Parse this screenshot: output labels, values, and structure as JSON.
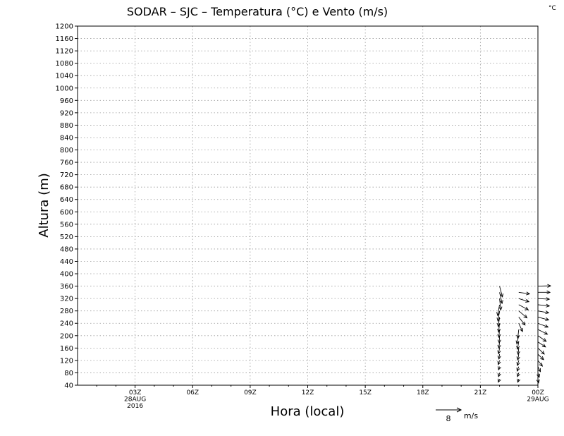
{
  "chart_data": {
    "type": "vector",
    "title": "SODAR – SJC – Temperatura (°C) e Vento (m/s)",
    "corner_unit": "°C",
    "xlabel": "Hora (local)",
    "ylabel": "Altura (m)",
    "ylim": [
      40,
      1200
    ],
    "ytick_step": 40,
    "xlim_hours": [
      0,
      24
    ],
    "grid": true,
    "xticks": [
      {
        "hour": 3,
        "lines": [
          "03Z",
          "28AUG",
          "2016"
        ]
      },
      {
        "hour": 6,
        "lines": [
          "06Z"
        ]
      },
      {
        "hour": 9,
        "lines": [
          "09Z"
        ]
      },
      {
        "hour": 12,
        "lines": [
          "12Z"
        ]
      },
      {
        "hour": 15,
        "lines": [
          "15Z"
        ]
      },
      {
        "hour": 18,
        "lines": [
          "18Z"
        ]
      },
      {
        "hour": 21,
        "lines": [
          "21Z"
        ]
      },
      {
        "hour": 24,
        "lines": [
          "00Z",
          "29AUG"
        ]
      }
    ],
    "reference_vector": {
      "speed": 8,
      "label": "8",
      "unit": "m/s"
    },
    "wind_profiles": [
      {
        "hour": 22.0,
        "levels": [
          {
            "z": 60,
            "u": -0.4,
            "v": -1.0
          },
          {
            "z": 80,
            "u": -0.3,
            "v": -1.2
          },
          {
            "z": 100,
            "u": -0.3,
            "v": -1.0
          },
          {
            "z": 120,
            "u": -0.4,
            "v": -1.3
          },
          {
            "z": 140,
            "u": -0.2,
            "v": -1.5
          },
          {
            "z": 160,
            "u": -0.3,
            "v": -1.8
          },
          {
            "z": 180,
            "u": -0.2,
            "v": -2.0
          },
          {
            "z": 200,
            "u": -0.1,
            "v": -2.3
          },
          {
            "z": 220,
            "u": -0.2,
            "v": -2.5
          },
          {
            "z": 240,
            "u": -0.3,
            "v": -2.8
          },
          {
            "z": 260,
            "u": -0.4,
            "v": -3.0
          },
          {
            "z": 280,
            "u": -0.5,
            "v": -3.2
          },
          {
            "z": 300,
            "u": -0.6,
            "v": -3.4
          },
          {
            "z": 320,
            "u": 0.4,
            "v": -3.6
          },
          {
            "z": 340,
            "u": 0.8,
            "v": -3.5
          },
          {
            "z": 360,
            "u": 0.9,
            "v": -3.4
          }
        ]
      },
      {
        "hour": 23.0,
        "levels": [
          {
            "z": 60,
            "u": -0.3,
            "v": -1.0
          },
          {
            "z": 80,
            "u": -0.4,
            "v": -1.2
          },
          {
            "z": 100,
            "u": -0.5,
            "v": -1.4
          },
          {
            "z": 120,
            "u": -0.4,
            "v": -1.6
          },
          {
            "z": 140,
            "u": -0.3,
            "v": -1.8
          },
          {
            "z": 160,
            "u": -0.2,
            "v": -2.0
          },
          {
            "z": 180,
            "u": -0.4,
            "v": -2.3
          },
          {
            "z": 200,
            "u": -0.6,
            "v": -2.6
          },
          {
            "z": 220,
            "u": -0.3,
            "v": -2.8
          },
          {
            "z": 240,
            "u": 1.2,
            "v": -2.6
          },
          {
            "z": 260,
            "u": 2.0,
            "v": -2.5
          },
          {
            "z": 280,
            "u": 2.6,
            "v": -2.2
          },
          {
            "z": 300,
            "u": 3.0,
            "v": -1.6
          },
          {
            "z": 320,
            "u": 3.2,
            "v": -1.0
          },
          {
            "z": 340,
            "u": 3.4,
            "v": -0.5
          }
        ]
      },
      {
        "hour": 24.0,
        "levels": [
          {
            "z": 60,
            "u": 0.2,
            "v": -1.2
          },
          {
            "z": 80,
            "u": 0.4,
            "v": -1.4
          },
          {
            "z": 100,
            "u": 0.8,
            "v": -1.6
          },
          {
            "z": 120,
            "u": 1.4,
            "v": -1.8
          },
          {
            "z": 140,
            "u": 1.8,
            "v": -1.7
          },
          {
            "z": 160,
            "u": 2.0,
            "v": -1.9
          },
          {
            "z": 180,
            "u": 2.4,
            "v": -1.6
          },
          {
            "z": 200,
            "u": 2.6,
            "v": -1.8
          },
          {
            "z": 220,
            "u": 3.0,
            "v": -1.5
          },
          {
            "z": 240,
            "u": 3.2,
            "v": -1.2
          },
          {
            "z": 260,
            "u": 3.4,
            "v": -0.9
          },
          {
            "z": 280,
            "u": 3.4,
            "v": -0.6
          },
          {
            "z": 300,
            "u": 3.6,
            "v": -0.4
          },
          {
            "z": 320,
            "u": 3.6,
            "v": -0.2
          },
          {
            "z": 340,
            "u": 3.8,
            "v": 0.0
          },
          {
            "z": 360,
            "u": 4.0,
            "v": 0.1
          }
        ]
      }
    ]
  }
}
